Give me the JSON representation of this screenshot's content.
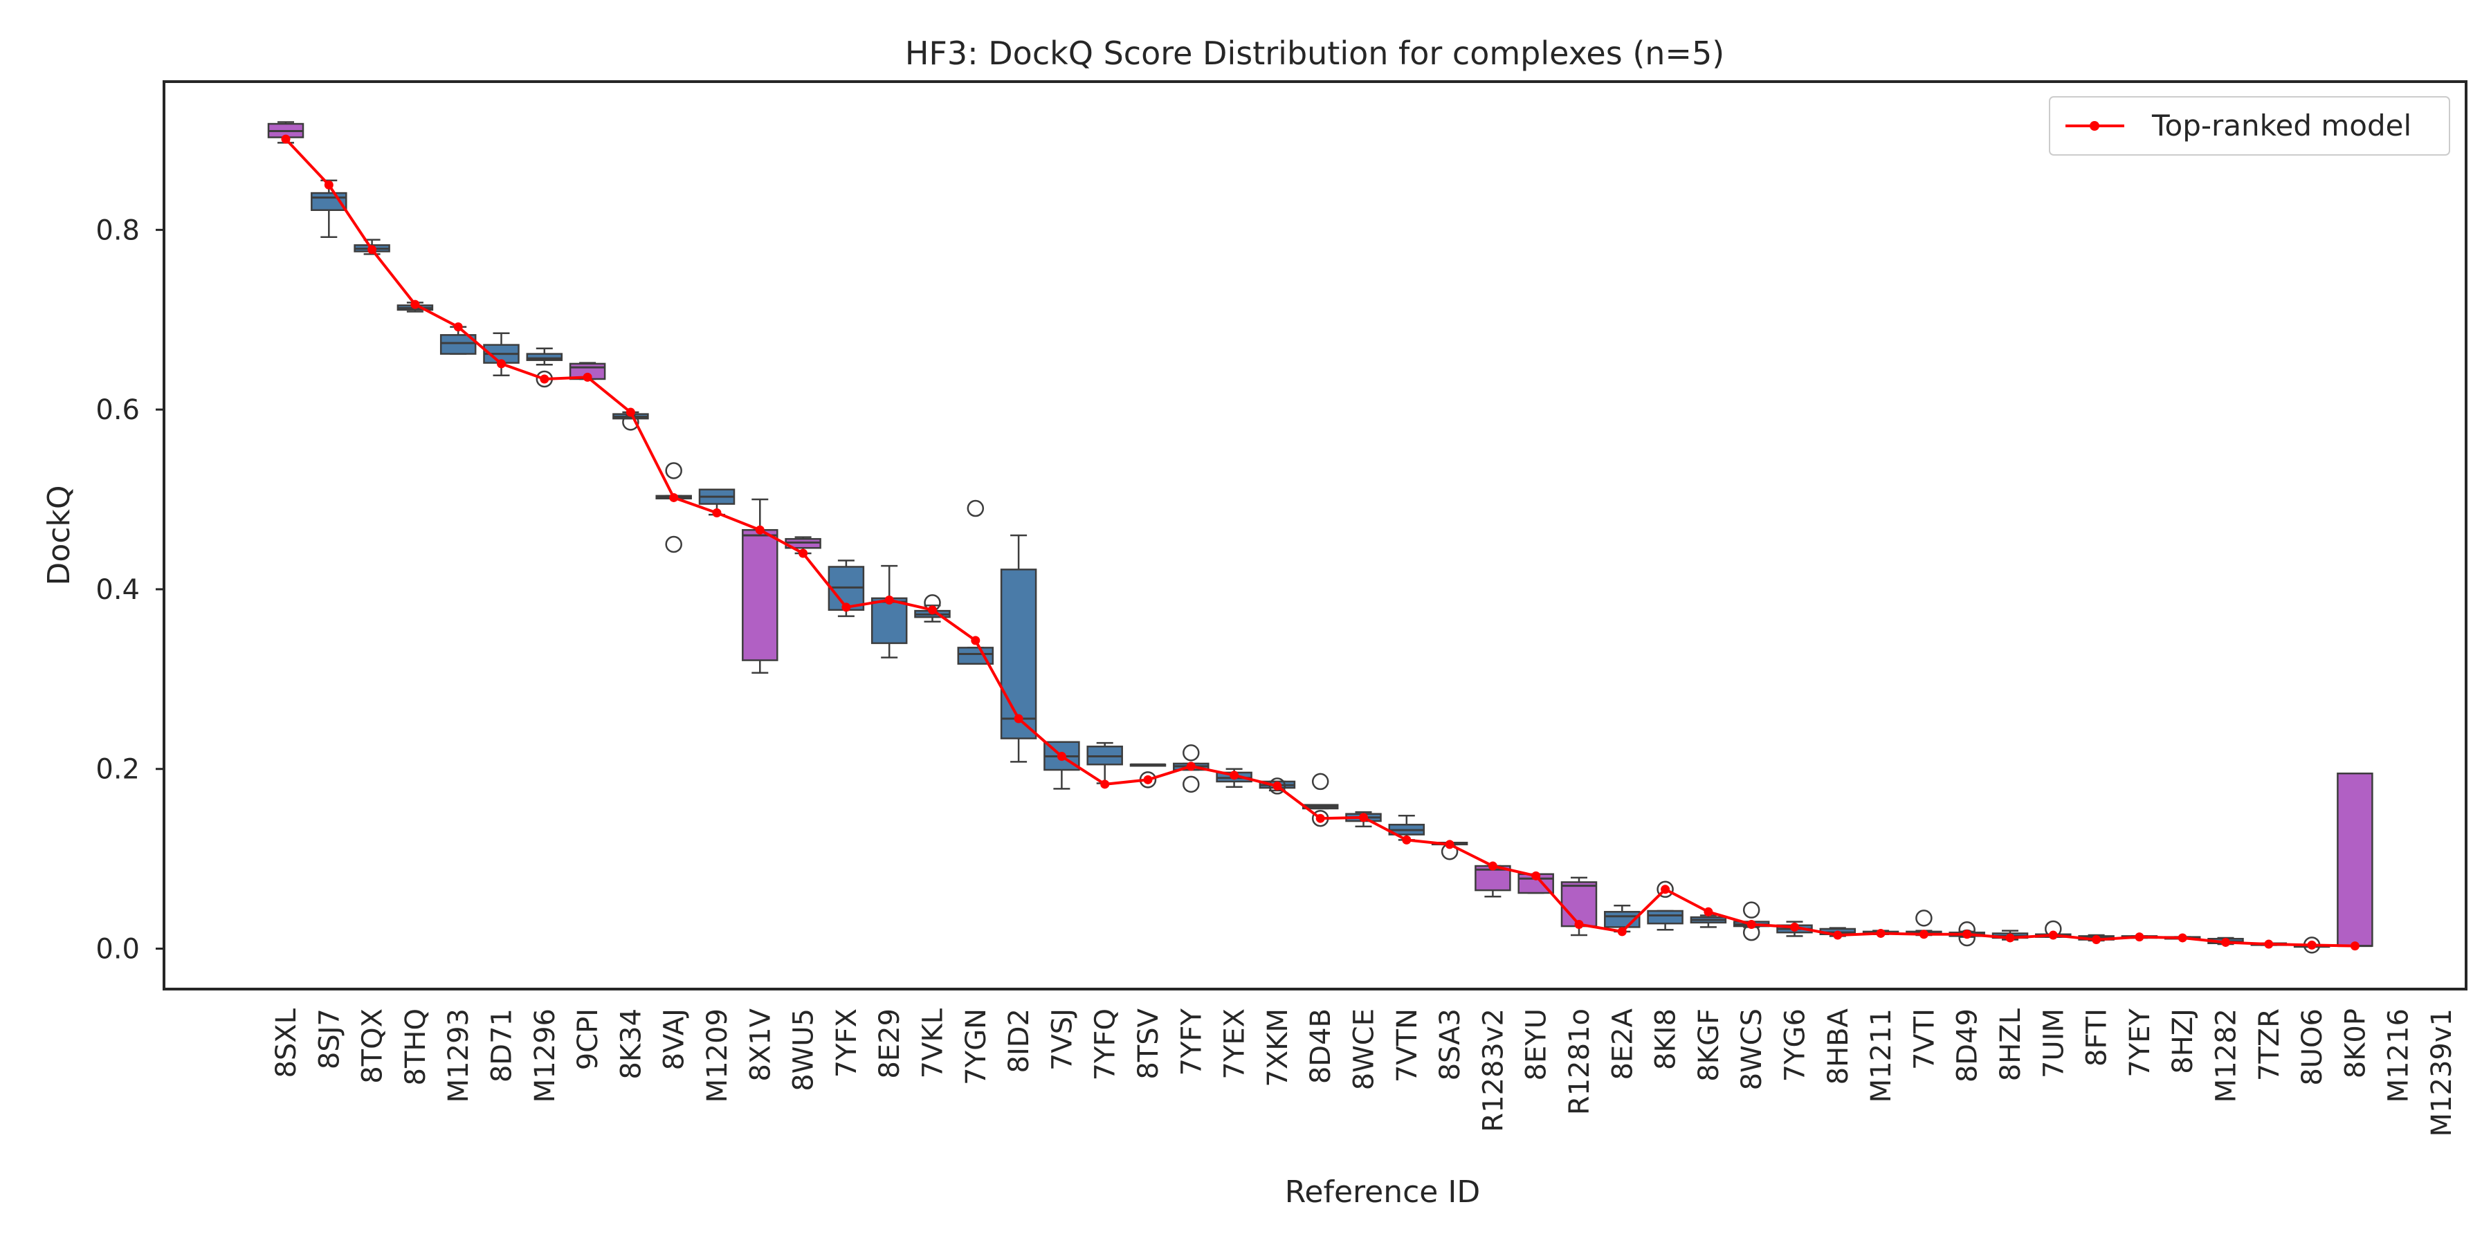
{
  "chart_data": {
    "type": "box",
    "title": "HF3: DockQ Score Distribution for complexes (n=5)",
    "xlabel": "Reference ID",
    "ylabel": "DockQ",
    "ylim": [
      -0.045,
      0.965
    ],
    "yticks": [
      "0.0",
      "0.2",
      "0.4",
      "0.6",
      "0.8"
    ],
    "grid": false,
    "legend": {
      "position": "top-right",
      "entries": [
        "Top-ranked model"
      ]
    },
    "colors": {
      "box_default": "#4a7ba8",
      "box_highlight": "#b160c4",
      "line": "#ff0000",
      "box_edge": "#3d3d3d"
    },
    "categories": [
      "8SXL",
      "8SJ7",
      "8TQX",
      "8THQ",
      "M1293",
      "8D71",
      "M1296",
      "9CPI",
      "8K34",
      "8VAJ",
      "M1209",
      "8X1V",
      "8WU5",
      "7YFX",
      "8E29",
      "7VKL",
      "7YGN",
      "8ID2",
      "7VSJ",
      "7YFQ",
      "8TSV",
      "7YFY",
      "7YEX",
      "7XKM",
      "8D4B",
      "8WCE",
      "7VTN",
      "8SA3",
      "R1283v2",
      "8EYU",
      "R1281o",
      "8E2A",
      "8KI8",
      "8KGF",
      "8WCS",
      "7YG6",
      "8HBA",
      "M1211",
      "7VTI",
      "8D49",
      "8HZL",
      "7UIM",
      "8FTI",
      "7YEY",
      "8HZJ",
      "M1282",
      "7TZR",
      "8UO6",
      "8K0P",
      "M1216",
      "M1239v1"
    ],
    "boxes": [
      {
        "q1": 0.903,
        "median": 0.91,
        "q3": 0.918,
        "wlo": 0.897,
        "whi": 0.92,
        "hl": true,
        "out": []
      },
      {
        "q1": 0.822,
        "median": 0.836,
        "q3": 0.841,
        "wlo": 0.792,
        "whi": 0.855,
        "hl": false,
        "out": []
      },
      {
        "q1": 0.776,
        "median": 0.779,
        "q3": 0.783,
        "wlo": 0.773,
        "whi": 0.789,
        "hl": false,
        "out": []
      },
      {
        "q1": 0.711,
        "median": 0.713,
        "q3": 0.716,
        "wlo": 0.709,
        "whi": 0.719,
        "hl": false,
        "out": []
      },
      {
        "q1": 0.662,
        "median": 0.674,
        "q3": 0.683,
        "wlo": 0.662,
        "whi": 0.692,
        "hl": false,
        "out": []
      },
      {
        "q1": 0.652,
        "median": 0.662,
        "q3": 0.672,
        "wlo": 0.638,
        "whi": 0.685,
        "hl": false,
        "out": []
      },
      {
        "q1": 0.655,
        "median": 0.657,
        "q3": 0.662,
        "wlo": 0.65,
        "whi": 0.668,
        "hl": false,
        "out": [
          0.634
        ]
      },
      {
        "q1": 0.634,
        "median": 0.647,
        "q3": 0.651,
        "wlo": 0.634,
        "whi": 0.652,
        "hl": true,
        "out": []
      },
      {
        "q1": 0.59,
        "median": 0.592,
        "q3": 0.595,
        "wlo": 0.59,
        "whi": 0.597,
        "hl": false,
        "out": [
          0.586
        ]
      },
      {
        "q1": 0.501,
        "median": 0.502,
        "q3": 0.504,
        "wlo": 0.501,
        "whi": 0.504,
        "hl": false,
        "out": [
          0.532,
          0.45
        ]
      },
      {
        "q1": 0.495,
        "median": 0.503,
        "q3": 0.511,
        "wlo": 0.483,
        "whi": 0.511,
        "hl": false,
        "out": []
      },
      {
        "q1": 0.321,
        "median": 0.46,
        "q3": 0.466,
        "wlo": 0.307,
        "whi": 0.5,
        "hl": true,
        "out": []
      },
      {
        "q1": 0.446,
        "median": 0.452,
        "q3": 0.456,
        "wlo": 0.44,
        "whi": 0.458,
        "hl": true,
        "out": []
      },
      {
        "q1": 0.377,
        "median": 0.402,
        "q3": 0.425,
        "wlo": 0.37,
        "whi": 0.432,
        "hl": false,
        "out": []
      },
      {
        "q1": 0.34,
        "median": 0.386,
        "q3": 0.39,
        "wlo": 0.324,
        "whi": 0.426,
        "hl": false,
        "out": []
      },
      {
        "q1": 0.369,
        "median": 0.372,
        "q3": 0.376,
        "wlo": 0.364,
        "whi": 0.382,
        "hl": false,
        "out": [
          0.385
        ]
      },
      {
        "q1": 0.317,
        "median": 0.328,
        "q3": 0.335,
        "wlo": 0.317,
        "whi": 0.335,
        "hl": false,
        "out": [
          0.49
        ]
      },
      {
        "q1": 0.234,
        "median": 0.256,
        "q3": 0.422,
        "wlo": 0.208,
        "whi": 0.46,
        "hl": false,
        "out": []
      },
      {
        "q1": 0.199,
        "median": 0.214,
        "q3": 0.23,
        "wlo": 0.178,
        "whi": 0.23,
        "hl": false,
        "out": []
      },
      {
        "q1": 0.205,
        "median": 0.214,
        "q3": 0.225,
        "wlo": 0.184,
        "whi": 0.229,
        "hl": false,
        "out": []
      },
      {
        "q1": 0.205,
        "median": 0.205,
        "q3": 0.205,
        "wlo": 0.205,
        "whi": 0.205,
        "hl": false,
        "out": [
          0.188
        ]
      },
      {
        "q1": 0.199,
        "median": 0.203,
        "q3": 0.206,
        "wlo": 0.199,
        "whi": 0.206,
        "hl": false,
        "out": [
          0.218,
          0.183
        ]
      },
      {
        "q1": 0.186,
        "median": 0.19,
        "q3": 0.196,
        "wlo": 0.18,
        "whi": 0.2,
        "hl": false,
        "out": []
      },
      {
        "q1": 0.179,
        "median": 0.182,
        "q3": 0.186,
        "wlo": 0.176,
        "whi": 0.186,
        "hl": false,
        "out": [
          0.181
        ]
      },
      {
        "q1": 0.156,
        "median": 0.158,
        "q3": 0.16,
        "wlo": 0.156,
        "whi": 0.16,
        "hl": false,
        "out": [
          0.186,
          0.145
        ]
      },
      {
        "q1": 0.142,
        "median": 0.146,
        "q3": 0.15,
        "wlo": 0.136,
        "whi": 0.152,
        "hl": false,
        "out": []
      },
      {
        "q1": 0.127,
        "median": 0.132,
        "q3": 0.138,
        "wlo": 0.121,
        "whi": 0.148,
        "hl": false,
        "out": []
      },
      {
        "q1": 0.116,
        "median": 0.117,
        "q3": 0.118,
        "wlo": 0.116,
        "whi": 0.118,
        "hl": false,
        "out": [
          0.108
        ]
      },
      {
        "q1": 0.065,
        "median": 0.088,
        "q3": 0.092,
        "wlo": 0.058,
        "whi": 0.092,
        "hl": true,
        "out": []
      },
      {
        "q1": 0.062,
        "median": 0.078,
        "q3": 0.083,
        "wlo": 0.062,
        "whi": 0.083,
        "hl": true,
        "out": []
      },
      {
        "q1": 0.025,
        "median": 0.07,
        "q3": 0.074,
        "wlo": 0.015,
        "whi": 0.079,
        "hl": true,
        "out": []
      },
      {
        "q1": 0.024,
        "median": 0.036,
        "q3": 0.041,
        "wlo": 0.019,
        "whi": 0.048,
        "hl": false,
        "out": []
      },
      {
        "q1": 0.028,
        "median": 0.037,
        "q3": 0.042,
        "wlo": 0.021,
        "whi": 0.042,
        "hl": false,
        "out": [
          0.066
        ]
      },
      {
        "q1": 0.029,
        "median": 0.032,
        "q3": 0.035,
        "wlo": 0.024,
        "whi": 0.037,
        "hl": false,
        "out": []
      },
      {
        "q1": 0.025,
        "median": 0.027,
        "q3": 0.03,
        "wlo": 0.024,
        "whi": 0.03,
        "hl": false,
        "out": [
          0.043,
          0.018
        ]
      },
      {
        "q1": 0.018,
        "median": 0.022,
        "q3": 0.026,
        "wlo": 0.014,
        "whi": 0.03,
        "hl": false,
        "out": []
      },
      {
        "q1": 0.016,
        "median": 0.018,
        "q3": 0.022,
        "wlo": 0.014,
        "whi": 0.023,
        "hl": false,
        "out": []
      },
      {
        "q1": 0.017,
        "median": 0.018,
        "q3": 0.019,
        "wlo": 0.016,
        "whi": 0.02,
        "hl": false,
        "out": []
      },
      {
        "q1": 0.016,
        "median": 0.017,
        "q3": 0.019,
        "wlo": 0.015,
        "whi": 0.02,
        "hl": false,
        "out": [
          0.034
        ]
      },
      {
        "q1": 0.014,
        "median": 0.016,
        "q3": 0.018,
        "wlo": 0.013,
        "whi": 0.019,
        "hl": false,
        "out": [
          0.021,
          0.012
        ]
      },
      {
        "q1": 0.012,
        "median": 0.014,
        "q3": 0.017,
        "wlo": 0.01,
        "whi": 0.02,
        "hl": false,
        "out": []
      },
      {
        "q1": 0.013,
        "median": 0.015,
        "q3": 0.016,
        "wlo": 0.013,
        "whi": 0.016,
        "hl": false,
        "out": [
          0.022
        ]
      },
      {
        "q1": 0.01,
        "median": 0.012,
        "q3": 0.014,
        "wlo": 0.009,
        "whi": 0.015,
        "hl": false,
        "out": []
      },
      {
        "q1": 0.012,
        "median": 0.013,
        "q3": 0.014,
        "wlo": 0.012,
        "whi": 0.014,
        "hl": false,
        "out": []
      },
      {
        "q1": 0.011,
        "median": 0.012,
        "q3": 0.013,
        "wlo": 0.011,
        "whi": 0.013,
        "hl": false,
        "out": []
      },
      {
        "q1": 0.006,
        "median": 0.008,
        "q3": 0.011,
        "wlo": 0.005,
        "whi": 0.012,
        "hl": false,
        "out": []
      },
      {
        "q1": 0.004,
        "median": 0.005,
        "q3": 0.006,
        "wlo": 0.004,
        "whi": 0.006,
        "hl": false,
        "out": []
      },
      {
        "q1": 0.002,
        "median": 0.003,
        "q3": 0.004,
        "wlo": 0.002,
        "whi": 0.004,
        "hl": false,
        "out": [
          0.004
        ]
      },
      {
        "q1": 0.003,
        "median": 0.003,
        "q3": 0.195,
        "wlo": 0.003,
        "whi": 0.195,
        "hl": true,
        "out": []
      },
      null,
      null
    ],
    "series": [
      {
        "name": "Top-ranked model",
        "values": [
          0.901,
          0.85,
          0.778,
          0.717,
          0.692,
          0.651,
          0.634,
          0.636,
          0.597,
          0.502,
          0.485,
          0.466,
          0.44,
          0.38,
          0.388,
          0.377,
          0.343,
          0.256,
          0.214,
          0.183,
          0.188,
          0.203,
          0.193,
          0.181,
          0.145,
          0.146,
          0.121,
          0.116,
          0.092,
          0.081,
          0.027,
          0.019,
          0.066,
          0.041,
          0.027,
          0.024,
          0.015,
          0.017,
          0.016,
          0.016,
          0.012,
          0.015,
          0.01,
          0.013,
          0.012,
          0.007,
          0.005,
          0.004,
          0.003,
          null,
          null
        ]
      }
    ]
  }
}
